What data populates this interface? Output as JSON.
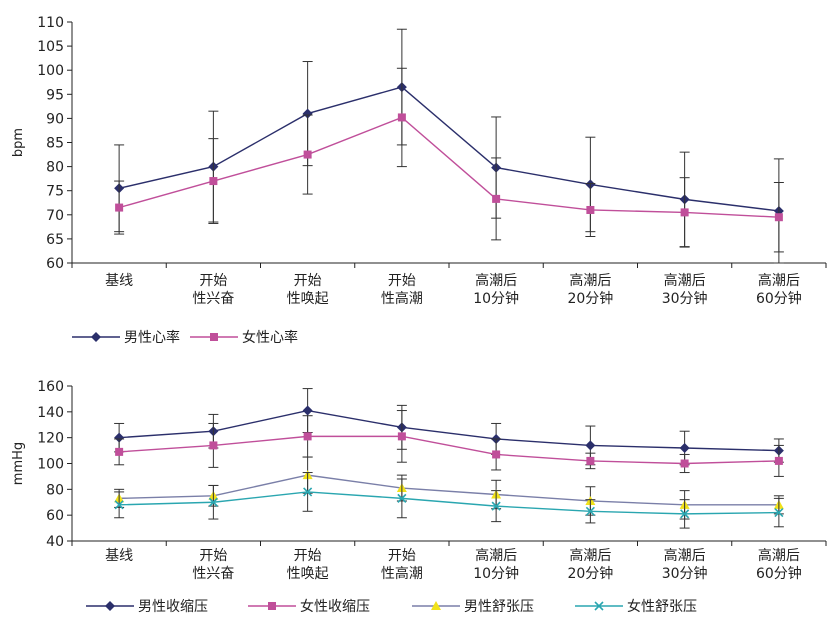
{
  "chart_data": [
    {
      "type": "line",
      "ylabel": "bpm",
      "ylim": [
        60,
        110
      ],
      "yticks": [
        60,
        65,
        70,
        75,
        80,
        85,
        90,
        95,
        100,
        105,
        110
      ],
      "categories": [
        [
          "基线"
        ],
        [
          "开始",
          "性兴奋"
        ],
        [
          "开始",
          "性唤起"
        ],
        [
          "开始",
          "性高潮"
        ],
        [
          "高潮后",
          "10分钟"
        ],
        [
          "高潮后",
          "20分钟"
        ],
        [
          "高潮后",
          "30分钟"
        ],
        [
          "高潮后",
          "60分钟"
        ]
      ],
      "legend_position": "bottom",
      "series": [
        {
          "name": "男性心率",
          "color": "#2b2f6b",
          "marker": "diamond",
          "values": [
            75.5,
            80,
            91,
            96.5,
            79.8,
            76.3,
            73.2,
            70.8
          ],
          "errors": [
            9,
            11.5,
            10.8,
            12,
            10.5,
            9.8,
            9.8,
            10.8
          ]
        },
        {
          "name": "女性心率",
          "color": "#c04f9a",
          "marker": "square",
          "values": [
            71.5,
            77,
            82.5,
            90.2,
            73.3,
            71,
            70.5,
            69.5
          ],
          "errors": [
            5.5,
            8.8,
            8.2,
            10.2,
            8.5,
            5.5,
            7.2,
            7.2
          ]
        }
      ]
    },
    {
      "type": "line",
      "ylabel": "mmHg",
      "ylim": [
        40,
        160
      ],
      "yticks": [
        40,
        60,
        80,
        100,
        120,
        140,
        160
      ],
      "categories": [
        [
          "基线"
        ],
        [
          "开始",
          "性兴奋"
        ],
        [
          "开始",
          "性唤起"
        ],
        [
          "开始",
          "性高潮"
        ],
        [
          "高潮后",
          "10分钟"
        ],
        [
          "高潮后",
          "20分钟"
        ],
        [
          "高潮后",
          "30分钟"
        ],
        [
          "高潮后",
          "60分钟"
        ]
      ],
      "legend_position": "bottom",
      "series": [
        {
          "name": "男性收缩压",
          "color": "#2b2f6b",
          "marker": "diamond",
          "values": [
            120,
            125,
            141,
            128,
            119,
            114,
            112,
            110
          ],
          "errors": [
            11,
            13,
            17,
            17,
            12,
            15,
            13,
            9
          ]
        },
        {
          "name": "女性收缩压",
          "color": "#c04f9a",
          "marker": "square",
          "values": [
            109,
            114,
            121,
            121,
            107,
            102,
            100,
            102
          ],
          "errors": [
            10,
            17,
            16,
            20,
            12,
            6,
            7,
            12
          ]
        },
        {
          "name": "男性舒张压",
          "color": "#7a7fa8",
          "marker": "triangle",
          "values": [
            73,
            75,
            91,
            81,
            76,
            71,
            68,
            68
          ],
          "errors": [
            7,
            8,
            14,
            10,
            11,
            11,
            11,
            7
          ]
        },
        {
          "name": "女性舒张压",
          "color": "#2aa6b0",
          "marker": "x",
          "values": [
            68,
            70,
            78,
            73,
            67,
            63,
            61,
            62
          ],
          "errors": [
            10,
            13,
            15,
            15,
            12,
            9,
            11,
            11
          ]
        }
      ]
    }
  ]
}
